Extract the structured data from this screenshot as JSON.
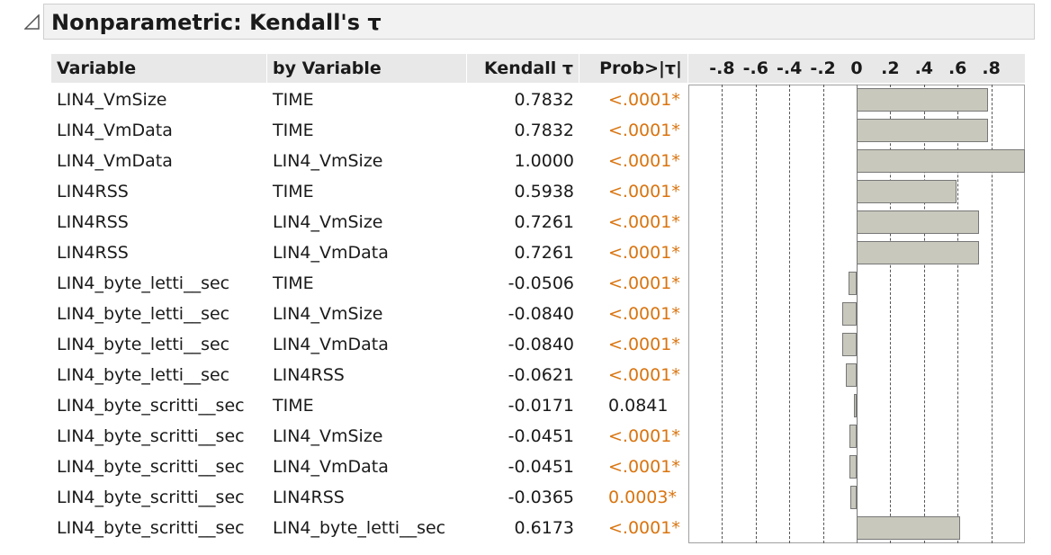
{
  "report": {
    "title": "Nonparametric: Kendall's τ"
  },
  "columns": {
    "variable": "Variable",
    "by_variable": "by Variable",
    "kendall": "Kendall τ",
    "prob": "Prob>|τ|"
  },
  "axis": {
    "ticks": [
      "-.8",
      "-.6",
      "-.4",
      "-.2",
      "0",
      ".2",
      ".4",
      ".6",
      ".8"
    ],
    "min": -1,
    "max": 1
  },
  "colors": {
    "significant": "#d9740f",
    "bar_fill": "#c8c8bd",
    "header_bg": "#e8e8e8"
  },
  "rows": [
    {
      "variable": "LIN4_VmSize",
      "by": "TIME",
      "tau_text": "0.7832",
      "tau": 0.7832,
      "prob": "<.0001*",
      "significant": true
    },
    {
      "variable": "LIN4_VmData",
      "by": "TIME",
      "tau_text": "0.7832",
      "tau": 0.7832,
      "prob": "<.0001*",
      "significant": true
    },
    {
      "variable": "LIN4_VmData",
      "by": "LIN4_VmSize",
      "tau_text": "1.0000",
      "tau": 1.0,
      "prob": "<.0001*",
      "significant": true
    },
    {
      "variable": "LIN4RSS",
      "by": "TIME",
      "tau_text": "0.5938",
      "tau": 0.5938,
      "prob": "<.0001*",
      "significant": true
    },
    {
      "variable": "LIN4RSS",
      "by": "LIN4_VmSize",
      "tau_text": "0.7261",
      "tau": 0.7261,
      "prob": "<.0001*",
      "significant": true
    },
    {
      "variable": "LIN4RSS",
      "by": "LIN4_VmData",
      "tau_text": "0.7261",
      "tau": 0.7261,
      "prob": "<.0001*",
      "significant": true
    },
    {
      "variable": "LIN4_byte_letti__sec",
      "by": "TIME",
      "tau_text": "-0.0506",
      "tau": -0.0506,
      "prob": "<.0001*",
      "significant": true
    },
    {
      "variable": "LIN4_byte_letti__sec",
      "by": "LIN4_VmSize",
      "tau_text": "-0.0840",
      "tau": -0.084,
      "prob": "<.0001*",
      "significant": true
    },
    {
      "variable": "LIN4_byte_letti__sec",
      "by": "LIN4_VmData",
      "tau_text": "-0.0840",
      "tau": -0.084,
      "prob": "<.0001*",
      "significant": true
    },
    {
      "variable": "LIN4_byte_letti__sec",
      "by": "LIN4RSS",
      "tau_text": "-0.0621",
      "tau": -0.0621,
      "prob": "<.0001*",
      "significant": true
    },
    {
      "variable": "LIN4_byte_scritti__sec",
      "by": "TIME",
      "tau_text": "-0.0171",
      "tau": -0.0171,
      "prob": "0.0841",
      "significant": false
    },
    {
      "variable": "LIN4_byte_scritti__sec",
      "by": "LIN4_VmSize",
      "tau_text": "-0.0451",
      "tau": -0.0451,
      "prob": "<.0001*",
      "significant": true
    },
    {
      "variable": "LIN4_byte_scritti__sec",
      "by": "LIN4_VmData",
      "tau_text": "-0.0451",
      "tau": -0.0451,
      "prob": "<.0001*",
      "significant": true
    },
    {
      "variable": "LIN4_byte_scritti__sec",
      "by": "LIN4RSS",
      "tau_text": "-0.0365",
      "tau": -0.0365,
      "prob": "0.0003*",
      "significant": true
    },
    {
      "variable": "LIN4_byte_scritti__sec",
      "by": "LIN4_byte_letti__sec",
      "tau_text": "0.6173",
      "tau": 0.6173,
      "prob": "<.0001*",
      "significant": true
    }
  ]
}
